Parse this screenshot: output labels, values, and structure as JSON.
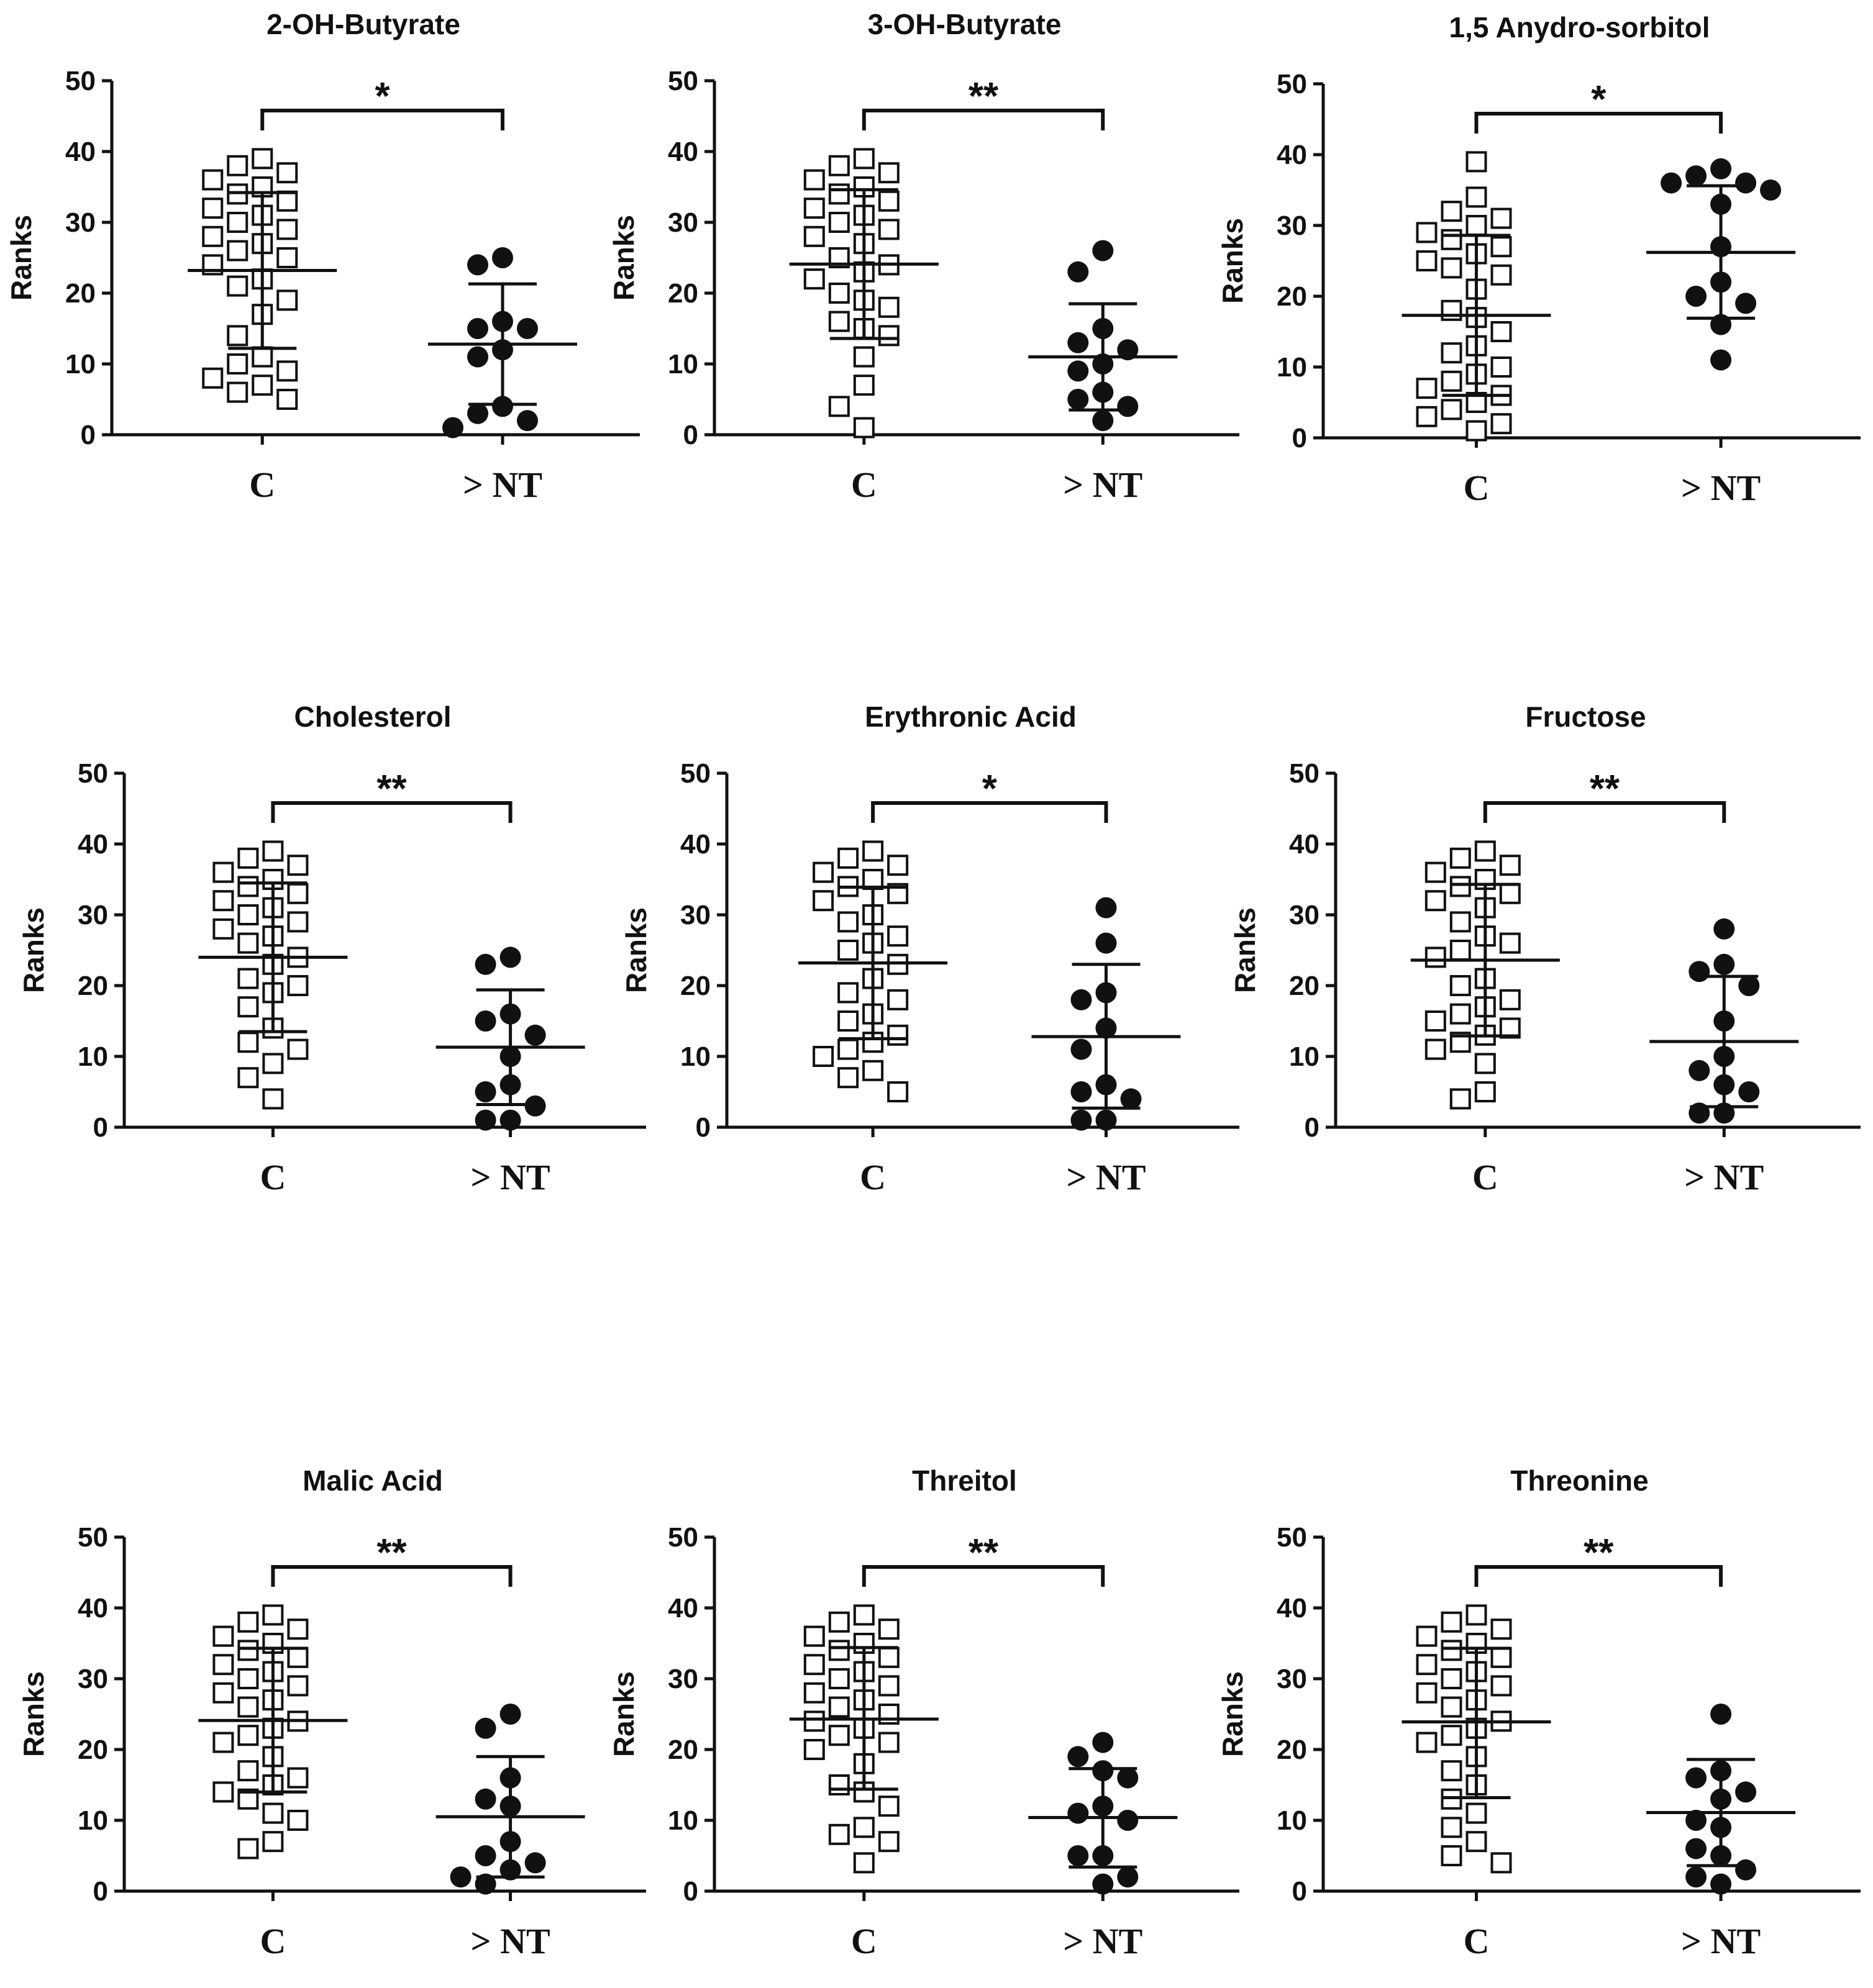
{
  "figure": {
    "colors": {
      "ink": "#111111",
      "background": "#ffffff"
    }
  },
  "chart_data": [
    {
      "type": "scatter",
      "title": "2-OH-Butyrate",
      "ylabel": "Ranks",
      "ylim": [
        0,
        50
      ],
      "yticks": [
        0,
        10,
        20,
        30,
        40,
        50
      ],
      "categories": [
        "C",
        "> NT"
      ],
      "significance": "*",
      "groups": [
        {
          "name": "C",
          "marker": "open-square",
          "mean": 23.2,
          "sd_low": 12.2,
          "sd_high": 34.2,
          "values": [
            38,
            39,
            36,
            35,
            34,
            37,
            33,
            32,
            31,
            30,
            29,
            28,
            27,
            26,
            25,
            24,
            22,
            21,
            19,
            17,
            14,
            11,
            10,
            9,
            8,
            7,
            6,
            5
          ]
        },
        {
          "name": "> NT",
          "marker": "filled-circle",
          "mean": 12.8,
          "sd_low": 4.3,
          "sd_high": 21.3,
          "values": [
            25,
            24,
            16,
            15,
            15,
            12,
            11,
            4,
            3,
            2,
            1
          ]
        }
      ]
    },
    {
      "type": "scatter",
      "title": "3-OH-Butyrate",
      "ylabel": "Ranks",
      "ylim": [
        0,
        50
      ],
      "yticks": [
        0,
        10,
        20,
        30,
        40,
        50
      ],
      "categories": [
        "C",
        "> NT"
      ],
      "significance": "**",
      "groups": [
        {
          "name": "C",
          "marker": "open-square",
          "mean": 24.1,
          "sd_low": 13.6,
          "sd_high": 34.6,
          "values": [
            38,
            39,
            37,
            36,
            35,
            34,
            33,
            32,
            31,
            30,
            29,
            28,
            27,
            25,
            24,
            23,
            22,
            20,
            19,
            18,
            16,
            15,
            14,
            11,
            7,
            4,
            1
          ]
        },
        {
          "name": "> NT",
          "marker": "filled-circle",
          "mean": 11.0,
          "sd_low": 3.5,
          "sd_high": 18.5,
          "values": [
            26,
            23,
            15,
            13,
            12,
            10,
            9,
            6,
            5,
            4,
            2
          ]
        }
      ]
    },
    {
      "type": "scatter",
      "title": "1,5 Anydro-sorbitol",
      "ylabel": "Ranks",
      "ylim": [
        0,
        50
      ],
      "yticks": [
        0,
        10,
        20,
        30,
        40,
        50
      ],
      "categories": [
        "C",
        "> NT"
      ],
      "significance": "*",
      "groups": [
        {
          "name": "C",
          "marker": "open-square",
          "mean": 17.3,
          "sd_low": 6.0,
          "sd_high": 28.6,
          "values": [
            39,
            34,
            32,
            31,
            30,
            29,
            28,
            27,
            26,
            25,
            24,
            23,
            21,
            18,
            17,
            15,
            13,
            12,
            10,
            9,
            8,
            7,
            6,
            5,
            4,
            3,
            2,
            1
          ]
        },
        {
          "name": "> NT",
          "marker": "filled-circle",
          "mean": 26.2,
          "sd_low": 16.9,
          "sd_high": 35.6,
          "values": [
            38,
            37,
            36,
            36,
            35,
            33,
            27,
            22,
            20,
            19,
            16,
            11
          ]
        }
      ]
    },
    {
      "type": "scatter",
      "title": "Cholesterol",
      "ylabel": "Ranks",
      "ylim": [
        0,
        50
      ],
      "yticks": [
        0,
        10,
        20,
        30,
        40,
        50
      ],
      "categories": [
        "C",
        "> NT"
      ],
      "significance": "**",
      "groups": [
        {
          "name": "C",
          "marker": "open-square",
          "mean": 24.0,
          "sd_low": 13.5,
          "sd_high": 34.5,
          "values": [
            39,
            38,
            37,
            36,
            35,
            34,
            33,
            32,
            31,
            30,
            29,
            28,
            27,
            26,
            24,
            23,
            21,
            20,
            19,
            17,
            14,
            12,
            11,
            9,
            7,
            4
          ]
        },
        {
          "name": "> NT",
          "marker": "filled-circle",
          "mean": 11.3,
          "sd_low": 3.2,
          "sd_high": 19.4,
          "values": [
            24,
            23,
            16,
            15,
            13,
            10,
            6,
            5,
            3,
            1,
            1
          ]
        }
      ]
    },
    {
      "type": "scatter",
      "title": "Erythronic Acid",
      "ylabel": "Ranks",
      "ylim": [
        0,
        50
      ],
      "yticks": [
        0,
        10,
        20,
        30,
        40,
        50
      ],
      "categories": [
        "C",
        "> NT"
      ],
      "significance": "*",
      "groups": [
        {
          "name": "C",
          "marker": "open-square",
          "mean": 23.2,
          "sd_low": 12.5,
          "sd_high": 33.9,
          "values": [
            39,
            38,
            37,
            36,
            35,
            34,
            33,
            32,
            30,
            29,
            27,
            26,
            25,
            23,
            21,
            19,
            18,
            16,
            15,
            13,
            12,
            11,
            10,
            8,
            7,
            5
          ]
        },
        {
          "name": "> NT",
          "marker": "filled-circle",
          "mean": 12.8,
          "sd_low": 2.7,
          "sd_high": 23.0,
          "values": [
            31,
            26,
            19,
            18,
            14,
            11,
            6,
            5,
            4,
            1,
            1
          ]
        }
      ]
    },
    {
      "type": "scatter",
      "title": "Fructose",
      "ylabel": "Ranks",
      "ylim": [
        0,
        50
      ],
      "yticks": [
        0,
        10,
        20,
        30,
        40,
        50
      ],
      "categories": [
        "C",
        "> NT"
      ],
      "significance": "**",
      "groups": [
        {
          "name": "C",
          "marker": "open-square",
          "mean": 23.6,
          "sd_low": 12.9,
          "sd_high": 34.3,
          "values": [
            39,
            38,
            37,
            36,
            35,
            34,
            33,
            32,
            31,
            29,
            27,
            26,
            25,
            24,
            21,
            20,
            18,
            17,
            16,
            15,
            14,
            13,
            12,
            11,
            9,
            5,
            4
          ]
        },
        {
          "name": "> NT",
          "marker": "filled-circle",
          "mean": 12.1,
          "sd_low": 2.9,
          "sd_high": 21.3,
          "values": [
            28,
            23,
            22,
            20,
            15,
            10,
            8,
            6,
            5,
            2,
            2
          ]
        }
      ]
    },
    {
      "type": "scatter",
      "title": "Malic Acid",
      "ylabel": "Ranks",
      "ylim": [
        0,
        50
      ],
      "yticks": [
        0,
        10,
        20,
        30,
        40,
        50
      ],
      "categories": [
        "C",
        "> NT"
      ],
      "significance": "**",
      "groups": [
        {
          "name": "C",
          "marker": "open-square",
          "mean": 24.1,
          "sd_low": 14.0,
          "sd_high": 34.3,
          "values": [
            39,
            38,
            37,
            36,
            35,
            34,
            33,
            32,
            31,
            30,
            29,
            28,
            27,
            26,
            24,
            23,
            22,
            21,
            19,
            17,
            16,
            15,
            14,
            13,
            11,
            10,
            7,
            6
          ]
        },
        {
          "name": "> NT",
          "marker": "filled-circle",
          "mean": 10.5,
          "sd_low": 2.0,
          "sd_high": 19.0,
          "values": [
            25,
            23,
            16,
            13,
            12,
            7,
            5,
            4,
            3,
            2,
            1
          ]
        }
      ]
    },
    {
      "type": "scatter",
      "title": "Threitol",
      "ylabel": "Ranks",
      "ylim": [
        0,
        50
      ],
      "yticks": [
        0,
        10,
        20,
        30,
        40,
        50
      ],
      "categories": [
        "C",
        "> NT"
      ],
      "significance": "**",
      "groups": [
        {
          "name": "C",
          "marker": "open-square",
          "mean": 24.3,
          "sd_low": 14.4,
          "sd_high": 34.4,
          "values": [
            39,
            38,
            37,
            36,
            35,
            34,
            33,
            32,
            31,
            30,
            29,
            28,
            27,
            26,
            25,
            24,
            23,
            22,
            21,
            20,
            18,
            15,
            14,
            12,
            9,
            8,
            7,
            4
          ]
        },
        {
          "name": "> NT",
          "marker": "filled-circle",
          "mean": 10.4,
          "sd_low": 3.4,
          "sd_high": 17.3,
          "values": [
            21,
            19,
            17,
            16,
            12,
            11,
            10,
            5,
            5,
            2,
            1
          ]
        }
      ]
    },
    {
      "type": "scatter",
      "title": "Threonine",
      "ylabel": "Ranks",
      "ylim": [
        0,
        50
      ],
      "yticks": [
        0,
        10,
        20,
        30,
        40,
        50
      ],
      "categories": [
        "C",
        "> NT"
      ],
      "significance": "**",
      "groups": [
        {
          "name": "C",
          "marker": "open-square",
          "mean": 23.9,
          "sd_low": 13.2,
          "sd_high": 34.3,
          "values": [
            39,
            38,
            37,
            36,
            35,
            34,
            33,
            32,
            31,
            30,
            29,
            28,
            27,
            26,
            24,
            23,
            22,
            21,
            19,
            17,
            15,
            13,
            11,
            9,
            7,
            5,
            4
          ]
        },
        {
          "name": "> NT",
          "marker": "filled-circle",
          "mean": 11.1,
          "sd_low": 3.6,
          "sd_high": 18.6,
          "values": [
            25,
            17,
            16,
            14,
            13,
            10,
            9,
            6,
            5,
            3,
            2,
            1
          ]
        }
      ]
    }
  ]
}
